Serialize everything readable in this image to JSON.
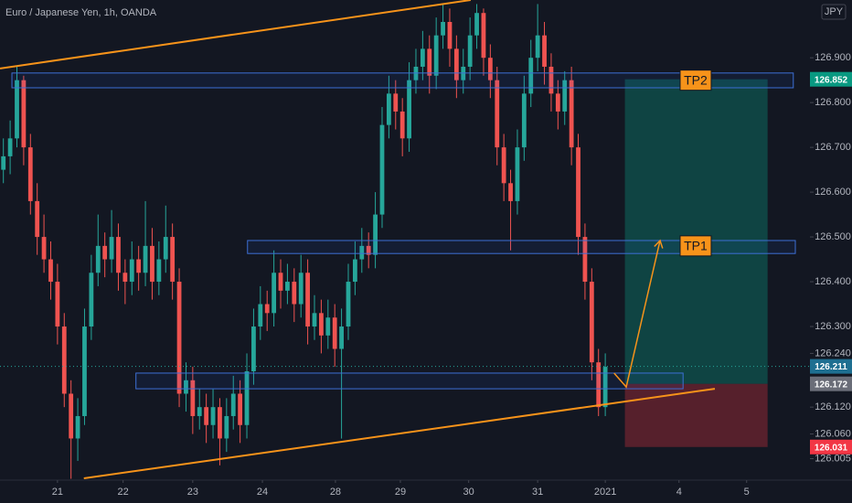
{
  "chart_data": {
    "type": "candlestick",
    "title": "Euro / Japanese Yen, 1h, OANDA",
    "currency": "JPY",
    "up_color": "#26a69a",
    "down_color": "#ef5350",
    "xlim": [
      0,
      117.6
    ],
    "ylim": [
      125.957,
      127.029
    ],
    "xticks": [
      {
        "value": 8.5,
        "label": "21"
      },
      {
        "value": 18.2,
        "label": "22"
      },
      {
        "value": 28.5,
        "label": "23"
      },
      {
        "value": 38.8,
        "label": "24"
      },
      {
        "value": 49.6,
        "label": "28"
      },
      {
        "value": 59.2,
        "label": "29"
      },
      {
        "value": 69.3,
        "label": "30"
      },
      {
        "value": 79.5,
        "label": "31"
      },
      {
        "value": 89.5,
        "label": "2021"
      },
      {
        "value": 100.4,
        "label": "4"
      },
      {
        "value": 110.4,
        "label": "5"
      }
    ],
    "yticks": [
      {
        "value": 126.005,
        "label": "126.005"
      },
      {
        "value": 126.06,
        "label": "126.060"
      },
      {
        "value": 126.12,
        "label": "126.120"
      },
      {
        "value": 126.24,
        "label": "126.240"
      },
      {
        "value": 126.3,
        "label": "126.300"
      },
      {
        "value": 126.4,
        "label": "126.400"
      },
      {
        "value": 126.5,
        "label": "126.500"
      },
      {
        "value": 126.6,
        "label": "126.600"
      },
      {
        "value": 126.7,
        "label": "126.700"
      },
      {
        "value": 126.8,
        "label": "126.800"
      },
      {
        "value": 126.9,
        "label": "126.900"
      }
    ],
    "price_labels": [
      {
        "value": 126.852,
        "label": "126.852",
        "color": "#089981"
      },
      {
        "value": 126.211,
        "label": "126.211",
        "color": "#1e6f91"
      },
      {
        "value": 126.172,
        "label": "126.172",
        "color": "#6a6d78"
      },
      {
        "value": 126.031,
        "label": "126.031",
        "color": "#f23645"
      }
    ],
    "current_price": 126.211,
    "candles": [
      [
        126.65,
        126.72,
        126.62,
        126.68
      ],
      [
        126.68,
        126.76,
        126.64,
        126.72
      ],
      [
        126.72,
        126.88,
        126.7,
        126.85
      ],
      [
        126.85,
        126.86,
        126.66,
        126.7
      ],
      [
        126.7,
        126.73,
        126.55,
        126.58
      ],
      [
        126.58,
        126.62,
        126.46,
        126.5
      ],
      [
        126.5,
        126.55,
        126.42,
        126.45
      ],
      [
        126.45,
        126.49,
        126.36,
        126.4
      ],
      [
        126.4,
        126.44,
        126.26,
        126.3
      ],
      [
        126.3,
        126.33,
        126.12,
        126.15
      ],
      [
        126.15,
        126.18,
        125.96,
        126.05
      ],
      [
        126.05,
        126.14,
        126.0,
        126.1
      ],
      [
        126.1,
        126.34,
        126.08,
        126.3
      ],
      [
        126.3,
        126.46,
        126.27,
        126.42
      ],
      [
        126.42,
        126.55,
        126.39,
        126.48
      ],
      [
        126.48,
        126.51,
        126.41,
        126.45
      ],
      [
        126.45,
        126.56,
        126.42,
        126.5
      ],
      [
        126.5,
        126.53,
        126.38,
        126.42
      ],
      [
        126.42,
        126.45,
        126.35,
        126.4
      ],
      [
        126.4,
        126.49,
        126.37,
        126.45
      ],
      [
        126.45,
        126.48,
        126.38,
        126.42
      ],
      [
        126.42,
        126.58,
        126.39,
        126.48
      ],
      [
        126.48,
        126.52,
        126.36,
        126.4
      ],
      [
        126.4,
        126.49,
        126.37,
        126.45
      ],
      [
        126.45,
        126.57,
        126.42,
        126.5
      ],
      [
        126.5,
        126.53,
        126.36,
        126.4
      ],
      [
        126.4,
        126.43,
        126.12,
        126.15
      ],
      [
        126.15,
        126.22,
        126.11,
        126.18
      ],
      [
        126.18,
        126.21,
        126.06,
        126.1
      ],
      [
        126.1,
        126.16,
        126.07,
        126.12
      ],
      [
        126.12,
        126.15,
        126.04,
        126.08
      ],
      [
        126.08,
        126.16,
        126.05,
        126.12
      ],
      [
        126.12,
        126.14,
        125.99,
        126.05
      ],
      [
        126.05,
        126.14,
        126.02,
        126.1
      ],
      [
        126.1,
        126.19,
        126.07,
        126.15
      ],
      [
        126.15,
        126.18,
        126.04,
        126.08
      ],
      [
        126.08,
        126.24,
        126.05,
        126.2
      ],
      [
        126.2,
        126.34,
        126.17,
        126.3
      ],
      [
        126.3,
        126.39,
        126.27,
        126.35
      ],
      [
        126.35,
        126.38,
        126.29,
        126.33
      ],
      [
        126.33,
        126.47,
        126.3,
        126.42
      ],
      [
        126.42,
        126.45,
        126.34,
        126.38
      ],
      [
        126.38,
        126.44,
        126.35,
        126.4
      ],
      [
        126.4,
        126.43,
        126.31,
        126.35
      ],
      [
        126.35,
        126.46,
        126.32,
        126.42
      ],
      [
        126.42,
        126.45,
        126.26,
        126.3
      ],
      [
        126.3,
        126.37,
        126.27,
        126.33
      ],
      [
        126.33,
        126.36,
        126.24,
        126.28
      ],
      [
        126.28,
        126.36,
        126.25,
        126.32
      ],
      [
        126.32,
        126.35,
        126.21,
        126.25
      ],
      [
        126.25,
        126.34,
        126.05,
        126.3
      ],
      [
        126.3,
        126.44,
        126.27,
        126.4
      ],
      [
        126.4,
        126.49,
        126.37,
        126.45
      ],
      [
        126.45,
        126.52,
        126.42,
        126.48
      ],
      [
        126.48,
        126.51,
        126.43,
        126.46
      ],
      [
        126.46,
        126.6,
        126.43,
        126.55
      ],
      [
        126.55,
        126.79,
        126.52,
        126.75
      ],
      [
        126.75,
        126.86,
        126.72,
        126.82
      ],
      [
        126.82,
        126.85,
        126.74,
        126.78
      ],
      [
        126.78,
        126.81,
        126.68,
        126.72
      ],
      [
        126.72,
        126.89,
        126.69,
        126.85
      ],
      [
        126.85,
        126.92,
        126.82,
        126.88
      ],
      [
        126.88,
        126.96,
        126.85,
        126.92
      ],
      [
        126.92,
        126.95,
        126.82,
        126.86
      ],
      [
        126.86,
        126.99,
        126.83,
        126.95
      ],
      [
        126.95,
        127.02,
        126.92,
        126.98
      ],
      [
        126.98,
        127.01,
        126.88,
        126.92
      ],
      [
        126.92,
        126.95,
        126.81,
        126.85
      ],
      [
        126.85,
        126.92,
        126.82,
        126.88
      ],
      [
        126.88,
        126.99,
        126.85,
        126.95
      ],
      [
        126.95,
        127.02,
        126.92,
        127.0
      ],
      [
        127.0,
        127.01,
        126.86,
        126.9
      ],
      [
        126.9,
        126.93,
        126.81,
        126.85
      ],
      [
        126.85,
        126.88,
        126.66,
        126.7
      ],
      [
        126.7,
        126.73,
        126.58,
        126.62
      ],
      [
        126.62,
        126.65,
        126.47,
        126.58
      ],
      [
        126.58,
        126.74,
        126.55,
        126.7
      ],
      [
        126.7,
        126.86,
        126.67,
        126.82
      ],
      [
        126.82,
        126.94,
        126.79,
        126.9
      ],
      [
        126.9,
        127.02,
        126.87,
        126.95
      ],
      [
        126.95,
        126.98,
        126.84,
        126.88
      ],
      [
        126.88,
        126.91,
        126.78,
        126.82
      ],
      [
        126.82,
        126.85,
        126.74,
        126.78
      ],
      [
        126.78,
        126.87,
        126.75,
        126.85
      ],
      [
        126.85,
        126.88,
        126.66,
        126.7
      ],
      [
        126.7,
        126.73,
        126.46,
        126.5
      ],
      [
        126.5,
        126.53,
        126.36,
        126.4
      ],
      [
        126.4,
        126.43,
        126.18,
        126.22
      ],
      [
        126.22,
        126.25,
        126.1,
        126.12
      ],
      [
        126.12,
        126.24,
        126.1,
        126.21
      ]
    ],
    "zones": [
      {
        "x": [
          1.76,
          117.3
        ],
        "y": [
          126.833,
          126.866
        ]
      },
      {
        "x": [
          36.6,
          117.6
        ],
        "y": [
          126.463,
          126.492
        ]
      },
      {
        "x": [
          20.1,
          101.0
        ],
        "y": [
          126.161,
          126.196
        ]
      }
    ],
    "targets": [
      {
        "label": "TP2",
        "x": 100.7,
        "y": 126.85
      },
      {
        "label": "TP1",
        "x": 100.7,
        "y": 126.48
      }
    ],
    "trendlines": [
      {
        "x": [
          0,
          69.6
        ],
        "y": [
          126.876,
          127.029
        ]
      },
      {
        "x": [
          12.4,
          105.7
        ],
        "y": [
          125.961,
          126.161
        ]
      }
    ],
    "projection": {
      "x": [
        90.8,
        92.6,
        97.6
      ],
      "y": [
        126.196,
        126.165,
        126.492
      ]
    },
    "position": {
      "x": [
        92.4,
        113.5
      ],
      "target": 126.852,
      "entry": 126.172,
      "stop": 126.031
    }
  }
}
